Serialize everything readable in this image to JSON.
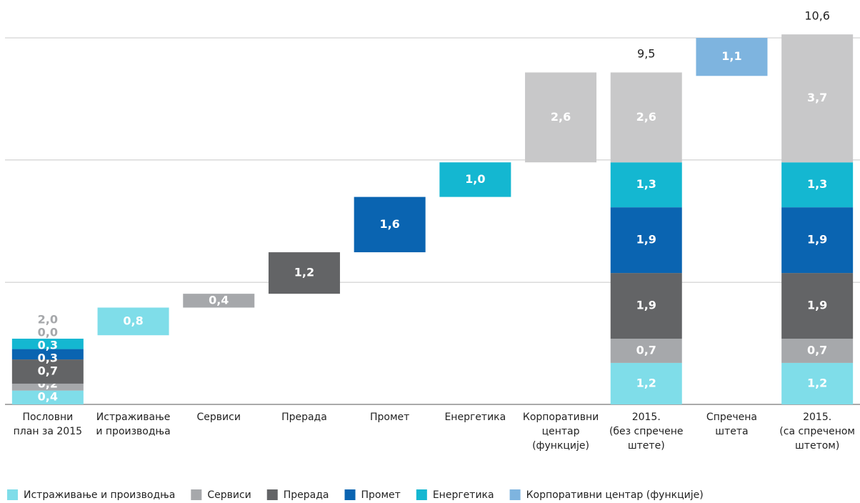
{
  "chart_data": {
    "type": "waterfall",
    "categories": [
      [
        "Пословни",
        "план за 2015"
      ],
      [
        "Истраживање",
        "и производња"
      ],
      [
        "Сервиси"
      ],
      [
        "Прерада"
      ],
      [
        "Промет"
      ],
      [
        "Енергетика"
      ],
      [
        "Корпоративни",
        "центар",
        "(функције)"
      ],
      [
        "2015.",
        "(без спречене",
        "штете)"
      ],
      [
        "Спречена",
        "штета"
      ],
      [
        "2015.",
        "(са спреченом",
        "штетом)"
      ]
    ],
    "series": [
      {
        "name": "Истраживање и производња",
        "color": "#7fdde9",
        "values": [
          0.4,
          0.8,
          null,
          null,
          null,
          null,
          null,
          1.2,
          null,
          1.2
        ],
        "value_labels": [
          "0,4",
          "0,8",
          null,
          null,
          null,
          null,
          null,
          "1,2",
          null,
          "1,2"
        ]
      },
      {
        "name": "Сервиси",
        "color": "#a6a8ab",
        "values": [
          0.2,
          null,
          0.4,
          null,
          null,
          null,
          null,
          0.7,
          null,
          0.7
        ],
        "value_labels": [
          "0,2",
          null,
          "0,4",
          null,
          null,
          null,
          null,
          "0,7",
          null,
          "0,7"
        ]
      },
      {
        "name": "Прерада",
        "color": "#636466",
        "values": [
          0.7,
          null,
          null,
          1.2,
          null,
          null,
          null,
          1.9,
          null,
          1.9
        ],
        "value_labels": [
          "0,7",
          null,
          null,
          "1,2",
          null,
          null,
          null,
          "1,9",
          null,
          "1,9"
        ]
      },
      {
        "name": "Промет",
        "color": "#0a64b1",
        "values": [
          0.3,
          null,
          null,
          null,
          1.6,
          null,
          null,
          1.9,
          null,
          1.9
        ],
        "value_labels": [
          "0,3",
          null,
          null,
          null,
          "1,6",
          null,
          null,
          "1,9",
          null,
          "1,9"
        ]
      },
      {
        "name": "Енергетика",
        "color": "#14b7d1",
        "values": [
          0.3,
          null,
          null,
          null,
          null,
          1.0,
          null,
          1.3,
          null,
          1.3
        ],
        "value_labels": [
          "0,3",
          null,
          null,
          null,
          null,
          "1,0",
          null,
          "1,3",
          null,
          "1,3"
        ]
      },
      {
        "name": "Корпоративни центар (функције)",
        "color": "#7eb4df",
        "values": [
          0.0,
          null,
          null,
          null,
          null,
          null,
          2.6,
          2.6,
          1.1,
          3.7
        ],
        "value_labels": [
          "0,0",
          null,
          null,
          null,
          null,
          null,
          "2,6",
          "2,6",
          "1,1",
          "3,7"
        ],
        "colors": [
          null,
          null,
          null,
          null,
          null,
          null,
          "#c8c8c9",
          "#c8c8c9",
          null,
          "#c8c8c9"
        ]
      }
    ],
    "totals": [
      2.0,
      null,
      null,
      null,
      null,
      null,
      null,
      9.5,
      null,
      10.6
    ],
    "total_labels": [
      "2,0",
      null,
      null,
      null,
      null,
      null,
      null,
      "9,5",
      null,
      "10,6"
    ],
    "ylim": [
      0,
      10.6
    ],
    "grid_lines": [
      3.53,
      7.07,
      10.6
    ],
    "grid": true,
    "legend": "bottom"
  }
}
